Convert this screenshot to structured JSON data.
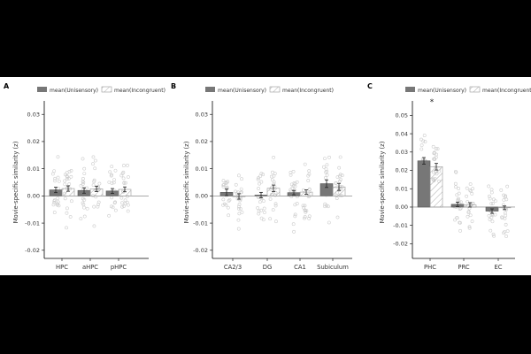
{
  "colors": {
    "unisensory": "#777777",
    "incongruent_hatch": "#aaaaaa",
    "dots": "#cccccc"
  },
  "chart_data": [
    {
      "type": "bar",
      "panel": "A",
      "ylabel": "Movie-specific similarity (z)",
      "ylim": [
        -0.023,
        0.033
      ],
      "yticks": [
        "-0.02",
        "-0.01",
        "0.00",
        "0.01",
        "0.02",
        "0.03"
      ],
      "legend": [
        "mean(Unisensory)",
        "mean(Incongruent)"
      ],
      "categories": [
        "HPC",
        "aHPC",
        "pHPC"
      ],
      "series": [
        {
          "name": "mean(Unisensory)",
          "values": [
            0.0022,
            0.002,
            0.0018
          ],
          "errors": [
            0.001,
            0.001,
            0.0009
          ]
        },
        {
          "name": "mean(Incongruent)",
          "values": [
            0.0027,
            0.0026,
            0.0024
          ],
          "errors": [
            0.001,
            0.001,
            0.0009
          ]
        }
      ],
      "annotations": []
    },
    {
      "type": "bar",
      "panel": "B",
      "ylabel": "Movie-specific similarity (z)",
      "ylim": [
        -0.023,
        0.033
      ],
      "yticks": [
        "-0.02",
        "-0.01",
        "0.00",
        "0.01",
        "0.02",
        "0.03"
      ],
      "legend": [
        "mean(Unisensory)",
        "mean(Incongruent)"
      ],
      "categories": [
        "CA2/3",
        "DG",
        "CA1",
        "Subiculum"
      ],
      "series": [
        {
          "name": "mean(Unisensory)",
          "values": [
            0.0013,
            0.0003,
            0.0012,
            0.0045
          ],
          "errors": [
            0.0012,
            0.001,
            0.0008,
            0.0014
          ]
        },
        {
          "name": "mean(Incongruent)",
          "values": [
            -0.0002,
            0.0028,
            0.0014,
            0.0033
          ],
          "errors": [
            0.001,
            0.0012,
            0.0008,
            0.0013
          ]
        }
      ],
      "annotations": []
    },
    {
      "type": "bar",
      "panel": "C",
      "ylabel": "Movie-specific similarity (z)",
      "ylim": [
        -0.028,
        0.055
      ],
      "yticks": [
        "-0.02",
        "-0.01",
        "0.00",
        "0.01",
        "0.02",
        "0.03",
        "0.04",
        "0.05"
      ],
      "legend": [
        "mean(Unisensory)",
        "mean(Incongruent)"
      ],
      "categories": [
        "PHC",
        "PRC",
        "EC"
      ],
      "series": [
        {
          "name": "mean(Unisensory)",
          "values": [
            0.0252,
            0.0015,
            -0.0022
          ],
          "errors": [
            0.0018,
            0.0012,
            0.0012
          ]
        },
        {
          "name": "mean(Incongruent)",
          "values": [
            0.022,
            0.0012,
            -0.0004
          ],
          "errors": [
            0.0018,
            0.0012,
            0.001
          ]
        }
      ],
      "annotations": [
        "*"
      ]
    }
  ]
}
